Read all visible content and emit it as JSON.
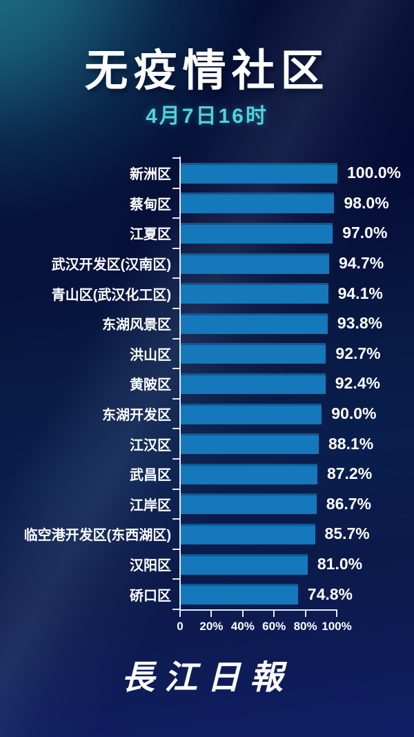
{
  "header": {
    "title": "无疫情社区",
    "subtitle": "4月7日16时"
  },
  "chart_data": {
    "type": "bar",
    "orientation": "horizontal",
    "title": "无疫情社区",
    "subtitle": "4月7日16时",
    "categories": [
      "新洲区",
      "蔡甸区",
      "江夏区",
      "武汉开发区(汉南区)",
      "青山区(武汉化工区)",
      "东湖风景区",
      "洪山区",
      "黄陂区",
      "东湖开发区",
      "江汉区",
      "武昌区",
      "江岸区",
      "临空港开发区(东西湖区)",
      "汉阳区",
      "硚口区"
    ],
    "values": [
      100.0,
      98.0,
      97.0,
      94.7,
      94.1,
      93.8,
      92.7,
      92.4,
      90.0,
      88.1,
      87.2,
      86.7,
      85.7,
      81.0,
      74.8
    ],
    "value_suffix": "%",
    "xlim": [
      0,
      100
    ],
    "x_ticks": [
      "0",
      "20%",
      "40%",
      "60%",
      "80%",
      "100%"
    ],
    "grid": false,
    "legend": false,
    "bar_color": "#1478ba"
  },
  "footer": {
    "logo": "長江日報"
  },
  "colors": {
    "bar": "#1478ba",
    "subtitle_accent": "#4fd3de",
    "axis": "#e9eef6",
    "text": "#ffffff",
    "bg_teal": "#1e7489",
    "bg_dark_top": "#030830",
    "bg_bottom": "#101f64"
  }
}
